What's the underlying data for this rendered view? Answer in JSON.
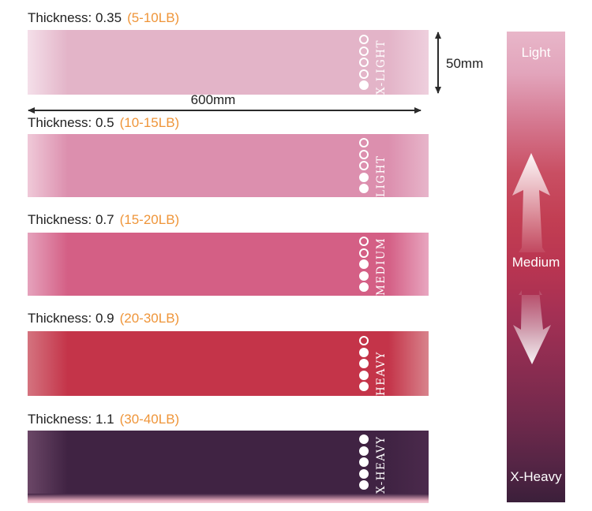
{
  "bands": [
    {
      "thickness_label": "Thickness: 0.35",
      "weight_label": "(5-10LB)",
      "level": "X-LIGHT",
      "dots_total": 5,
      "dots_filled": 1,
      "colors": {
        "left": "#f4dfe9",
        "main": "#e3b4c8",
        "right_fade": "#eecfdd"
      }
    },
    {
      "thickness_label": "Thickness: 0.5",
      "weight_label": "(10-15LB)",
      "level": "LIGHT",
      "dots_total": 5,
      "dots_filled": 2,
      "colors": {
        "left": "#efc9d8",
        "main": "#dc8fae",
        "right_fade": "#e7b5ca"
      }
    },
    {
      "thickness_label": "Thickness: 0.7",
      "weight_label": "(15-20LB)",
      "level": "MEDIUM",
      "dots_total": 5,
      "dots_filled": 3,
      "colors": {
        "left": "#e5a2bc",
        "main": "#d45f85",
        "right_fade": "#e8a6c0"
      }
    },
    {
      "thickness_label": "Thickness: 0.9",
      "weight_label": "(20-30LB)",
      "level": "HEAVY",
      "dots_total": 5,
      "dots_filled": 4,
      "colors": {
        "left": "#d4737f",
        "main": "#c43449",
        "right_fade": "#d8838c"
      }
    },
    {
      "thickness_label": "Thickness: 1.1",
      "weight_label": "(30-40LB)",
      "level": "X-HEAVY",
      "dots_total": 5,
      "dots_filled": 5,
      "colors": {
        "left": "#6b4767",
        "main": "#402343",
        "right_fade": "#4b2a4c",
        "bottom_sheen": "#e9aec0"
      }
    }
  ],
  "dimensions": {
    "width_label": "600mm",
    "height_label": "50mm"
  },
  "scale_bar": {
    "labels": {
      "top": "Light",
      "middle": "Medium",
      "bottom": "X-Heavy"
    },
    "gradient_stops": [
      "#e8b6c9 0%",
      "#e2a4bb 9%",
      "#d4758d 20%",
      "#c94f63 30%",
      "#c23e53 40%",
      "#b93551 50%",
      "#a43054 60%",
      "#8e2d51 70%",
      "#71294c 82%",
      "#552545 92%",
      "#3b1f3a 100%"
    ]
  },
  "colors": {
    "page_bg": "#ffffff",
    "accent_orange": "#ef9539",
    "text_dark": "#1f1f1f",
    "dim_line": "#2b2b2b",
    "dot_white": "#ffffff"
  }
}
